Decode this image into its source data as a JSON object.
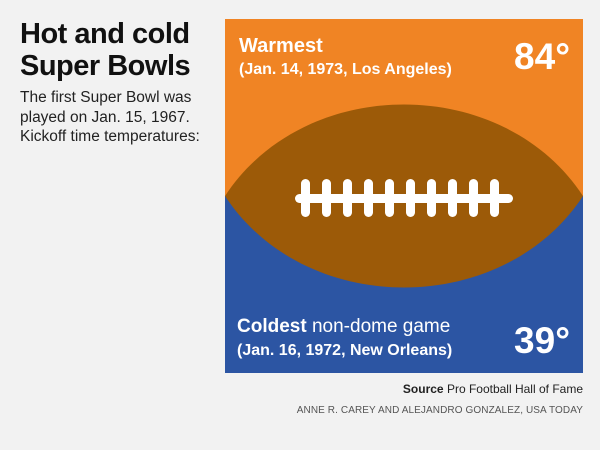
{
  "title_lines": [
    "Hot and cold",
    "Super Bowls"
  ],
  "intro": "The first Super Bowl was played on Jan. 15, 1967. Kickoff time temperatures:",
  "warmest": {
    "heading": "Warmest",
    "detail": "(Jan. 14, 1973, Los Angeles)",
    "temperature": "84°"
  },
  "coldest": {
    "heading": "Coldest",
    "heading_rest": "non-dome game",
    "detail": "(Jan. 16, 1972, New Orleans)",
    "temperature": "39°"
  },
  "source": {
    "label": "Source",
    "text": "Pro Football Hall of Fame"
  },
  "credit": "ANNE R. CAREY AND ALEJANDRO GONZALEZ, USA TODAY",
  "colors": {
    "warm_background": "#f08424",
    "cold_background": "#2c55a3",
    "football": "#9c5a08",
    "laces": "#ffffff",
    "page_background": "#f2f2f2"
  },
  "icons": [
    "football-icon"
  ]
}
